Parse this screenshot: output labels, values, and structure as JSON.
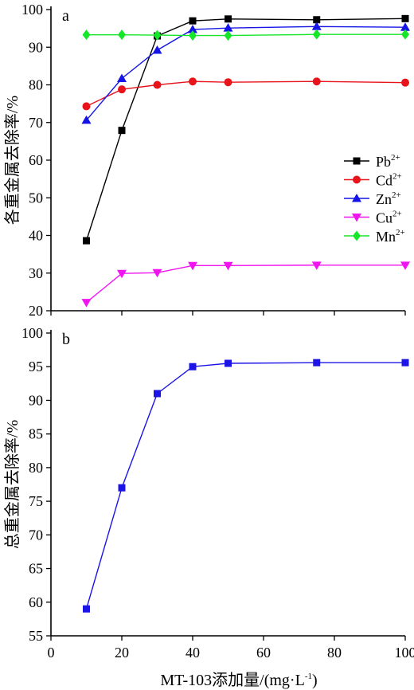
{
  "chart_data": [
    {
      "panel_label": "a",
      "type": "line",
      "ylabel": "各重金属去除率/%",
      "ylim": [
        20,
        100
      ],
      "yticks": [
        20,
        30,
        40,
        50,
        60,
        70,
        80,
        90,
        100
      ],
      "xlim": [
        0,
        100
      ],
      "x": [
        10,
        20,
        30,
        40,
        50,
        75,
        100
      ],
      "legend_position": "right-middle",
      "series": [
        {
          "name": "Pb",
          "sup": "2+",
          "color": "#000000",
          "marker": "square",
          "values": [
            38.6,
            67.9,
            93.0,
            97.0,
            97.5,
            97.3,
            97.6
          ]
        },
        {
          "name": "Cd",
          "sup": "2+",
          "color": "#e8141b",
          "marker": "circle",
          "values": [
            74.3,
            78.8,
            80.0,
            80.9,
            80.7,
            80.9,
            80.6
          ]
        },
        {
          "name": "Zn",
          "sup": "2+",
          "color": "#1414e6",
          "marker": "triangle-up",
          "values": [
            70.6,
            81.7,
            89.2,
            94.7,
            95.1,
            95.5,
            95.3
          ]
        },
        {
          "name": "Cu",
          "sup": "2+",
          "color": "#f014f0",
          "marker": "triangle-down",
          "values": [
            22.2,
            29.9,
            30.1,
            32.0,
            32.0,
            32.1,
            32.1
          ]
        },
        {
          "name": "Mn",
          "sup": "2+",
          "color": "#16e629",
          "marker": "diamond",
          "values": [
            93.3,
            93.3,
            93.2,
            93.1,
            93.1,
            93.4,
            93.4
          ]
        }
      ]
    },
    {
      "panel_label": "b",
      "type": "line",
      "ylabel": "总重金属去除率/%",
      "xlabel_main": "MT-103添加量/(mg·L",
      "xlabel_sup": "-1",
      "xlabel_end": ")",
      "ylim": [
        55,
        100
      ],
      "yticks": [
        55,
        60,
        65,
        70,
        75,
        80,
        85,
        90,
        95,
        100
      ],
      "xlim": [
        0,
        100
      ],
      "xticks": [
        0,
        20,
        40,
        60,
        80,
        100
      ],
      "x": [
        10,
        20,
        30,
        40,
        50,
        75,
        100
      ],
      "series": [
        {
          "color": "#1c14e6",
          "marker": "square",
          "values": [
            59.0,
            77.0,
            91.0,
            95.0,
            95.5,
            95.6,
            95.6
          ]
        }
      ]
    }
  ]
}
